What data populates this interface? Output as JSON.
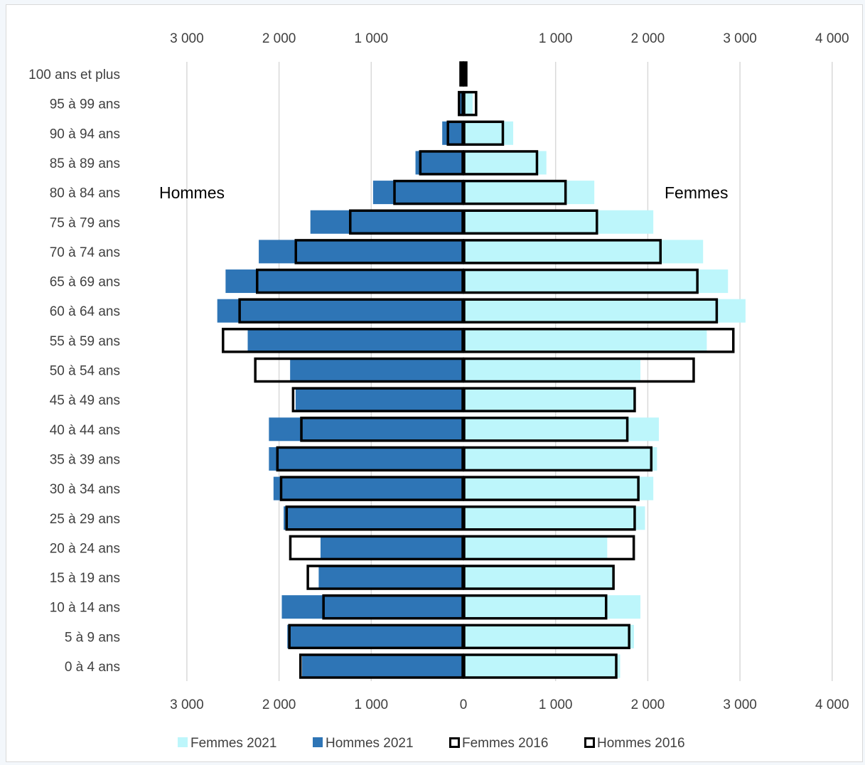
{
  "colors": {
    "femmes_2021": "#bdf6fb",
    "hommes_2021": "#2e75b6",
    "outline_2016": "#000000",
    "grid": "#d9d9d9"
  },
  "chart_data": {
    "type": "bar",
    "orientation": "horizontal",
    "subtype": "population-pyramid",
    "title": "",
    "side_labels": {
      "left": "Hommes",
      "right": "Femmes"
    },
    "categories": [
      "100 ans et plus",
      "95 à 99 ans",
      "90 à 94 ans",
      "85 à 89 ans",
      "80 à 84 ans",
      "75 à 79 ans",
      "70 à 74 ans",
      "65 à 69 ans",
      "60 à 64 ans",
      "55 à 59 ans",
      "50 à 54 ans",
      "45 à 49 ans",
      "40 à 44 ans",
      "35 à 39 ans",
      "30 à 34 ans",
      "25 à 29 ans",
      "20 à 24 ans",
      "15 à 19 ans",
      "10 à 14 ans",
      "5 à 9 ans",
      "0 à 4 ans"
    ],
    "series": [
      {
        "name": "Femmes 2021",
        "side": "right",
        "style": "filled",
        "values": [
          15,
          100,
          540,
          900,
          1420,
          2060,
          2600,
          2870,
          3060,
          2640,
          1920,
          1850,
          2120,
          2100,
          2060,
          1970,
          1560,
          1620,
          1920,
          1850,
          1700
        ]
      },
      {
        "name": "Hommes 2021",
        "side": "left",
        "style": "filled",
        "values": [
          10,
          50,
          230,
          520,
          980,
          1660,
          2220,
          2580,
          2670,
          2340,
          1880,
          1820,
          2110,
          2110,
          2060,
          1950,
          1550,
          1570,
          1970,
          1910,
          1750
        ]
      },
      {
        "name": "Femmes 2016",
        "side": "right",
        "style": "outline",
        "values": [
          10,
          130,
          420,
          790,
          1100,
          1440,
          2130,
          2530,
          2740,
          2920,
          2490,
          1850,
          1770,
          2030,
          1890,
          1850,
          1840,
          1620,
          1540,
          1790,
          1650
        ]
      },
      {
        "name": "Hommes 2016",
        "side": "left",
        "style": "outline",
        "values": [
          10,
          40,
          160,
          460,
          740,
          1220,
          1810,
          2230,
          2420,
          2600,
          2250,
          1840,
          1750,
          2010,
          1970,
          1910,
          1870,
          1680,
          1510,
          1880,
          1760
        ]
      }
    ],
    "x_axis_top_ticks": [
      "3 000",
      "2 000",
      "1 000",
      "",
      "1 000",
      "2 000",
      "3 000",
      "4 000"
    ],
    "x_axis_bottom_ticks": [
      "3 000",
      "2 000",
      "1 000",
      "0",
      "1 000",
      "2 000",
      "3 000",
      "4 000"
    ],
    "xlim": [
      -3000,
      4000
    ],
    "grid": true,
    "legend_position": "bottom"
  }
}
